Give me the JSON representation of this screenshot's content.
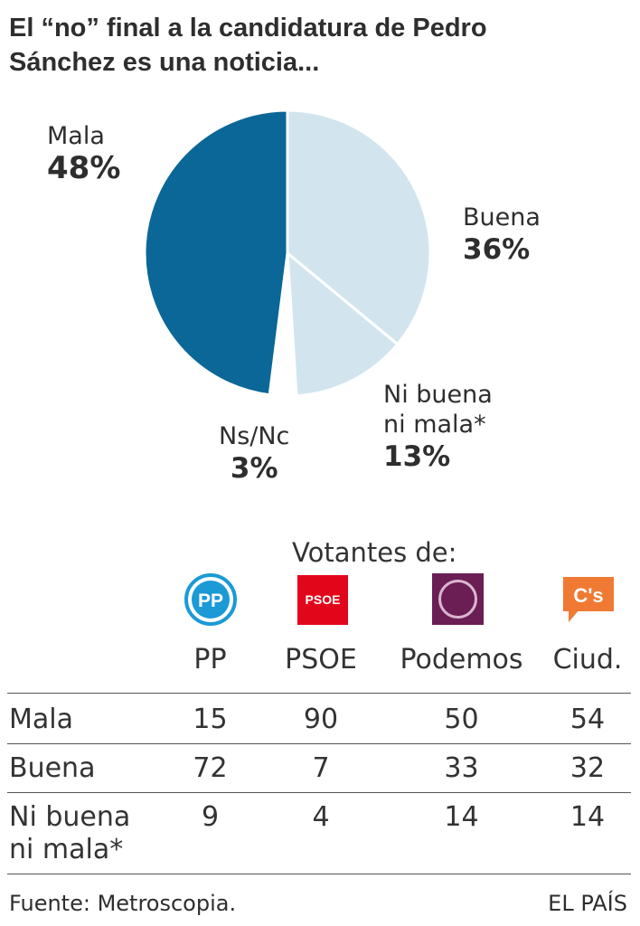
{
  "title": {
    "line1": "El “no” final a la candidatura de Pedro",
    "line2": "Sánchez es una noticia..."
  },
  "chart_data": {
    "type": "pie",
    "slices": [
      {
        "label": "Buena",
        "value": 36,
        "display": "36%",
        "color": "#d2e5ee"
      },
      {
        "label": "Ni buena ni mala*",
        "value": 13,
        "display": "13%",
        "color": "#d2e5ee"
      },
      {
        "label": "Ns/Nc",
        "value": 3,
        "display": "3%",
        "color": "#ffffff"
      },
      {
        "label": "Mala",
        "value": 48,
        "display": "48%",
        "color": "#0a6797"
      }
    ],
    "labels": {
      "mala_name": "Mala",
      "mala_pct": "48%",
      "buena_name": "Buena",
      "buena_pct": "36%",
      "ni_name_1": "Ni buena",
      "ni_name_2": "ni mala*",
      "ni_pct": "13%",
      "ns_name": "Ns/Nc",
      "ns_pct": "3%"
    }
  },
  "table": {
    "group_label": "Votantes de:",
    "logos": [
      {
        "icon": "pp-logo",
        "text": "PP",
        "color": "#1b9ad6"
      },
      {
        "icon": "psoe-logo",
        "text": "PSOE",
        "color": "#e2061a"
      },
      {
        "icon": "podemos-logo",
        "color": "#6a1e54"
      },
      {
        "icon": "ciudadanos-logo",
        "text": "C's",
        "color": "#f07a33"
      }
    ],
    "columns": [
      "PP",
      "PSOE",
      "Podemos",
      "Ciud."
    ],
    "rows": [
      {
        "label": "Mala",
        "values": [
          "15",
          "90",
          "50",
          "54"
        ]
      },
      {
        "label": "Buena",
        "values": [
          "72",
          "7",
          "33",
          "32"
        ]
      },
      {
        "label_1": "Ni buena",
        "label_2": "ni mala*",
        "values": [
          "9",
          "4",
          "14",
          "14"
        ]
      }
    ]
  },
  "footer": {
    "source": "Fuente: Metroscopia.",
    "brand": "EL PAÍS"
  }
}
